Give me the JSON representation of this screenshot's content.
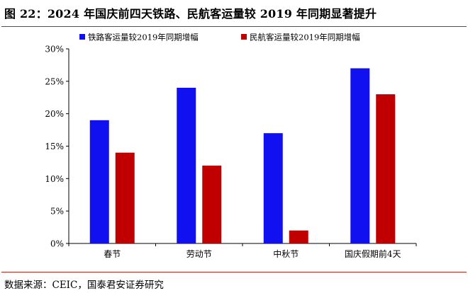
{
  "title": "图 22：2024 年国庆前四天铁路、民航客运量较 2019 年同期显著提升",
  "source": "数据来源：CEIC，国泰君安证券研究",
  "colors": {
    "rail": "#1010f0",
    "air": "#c00000",
    "rule": "#b3261e"
  },
  "chart_data": {
    "type": "bar",
    "categories": [
      "春节",
      "劳动节",
      "中秋节",
      "国庆假期前4天"
    ],
    "series": [
      {
        "name": "铁路客运量较2019年同期增幅",
        "values": [
          19,
          24,
          17,
          27
        ],
        "color": "#1010f0"
      },
      {
        "name": "民航客运量较2019年同期增幅",
        "values": [
          14,
          12,
          2,
          23
        ],
        "color": "#c00000"
      }
    ],
    "y_ticks": [
      "0%",
      "5%",
      "10%",
      "15%",
      "20%",
      "25%",
      "30%"
    ],
    "ylim": [
      0,
      30
    ],
    "unit": "%",
    "grid": false,
    "legend_position": "top"
  }
}
